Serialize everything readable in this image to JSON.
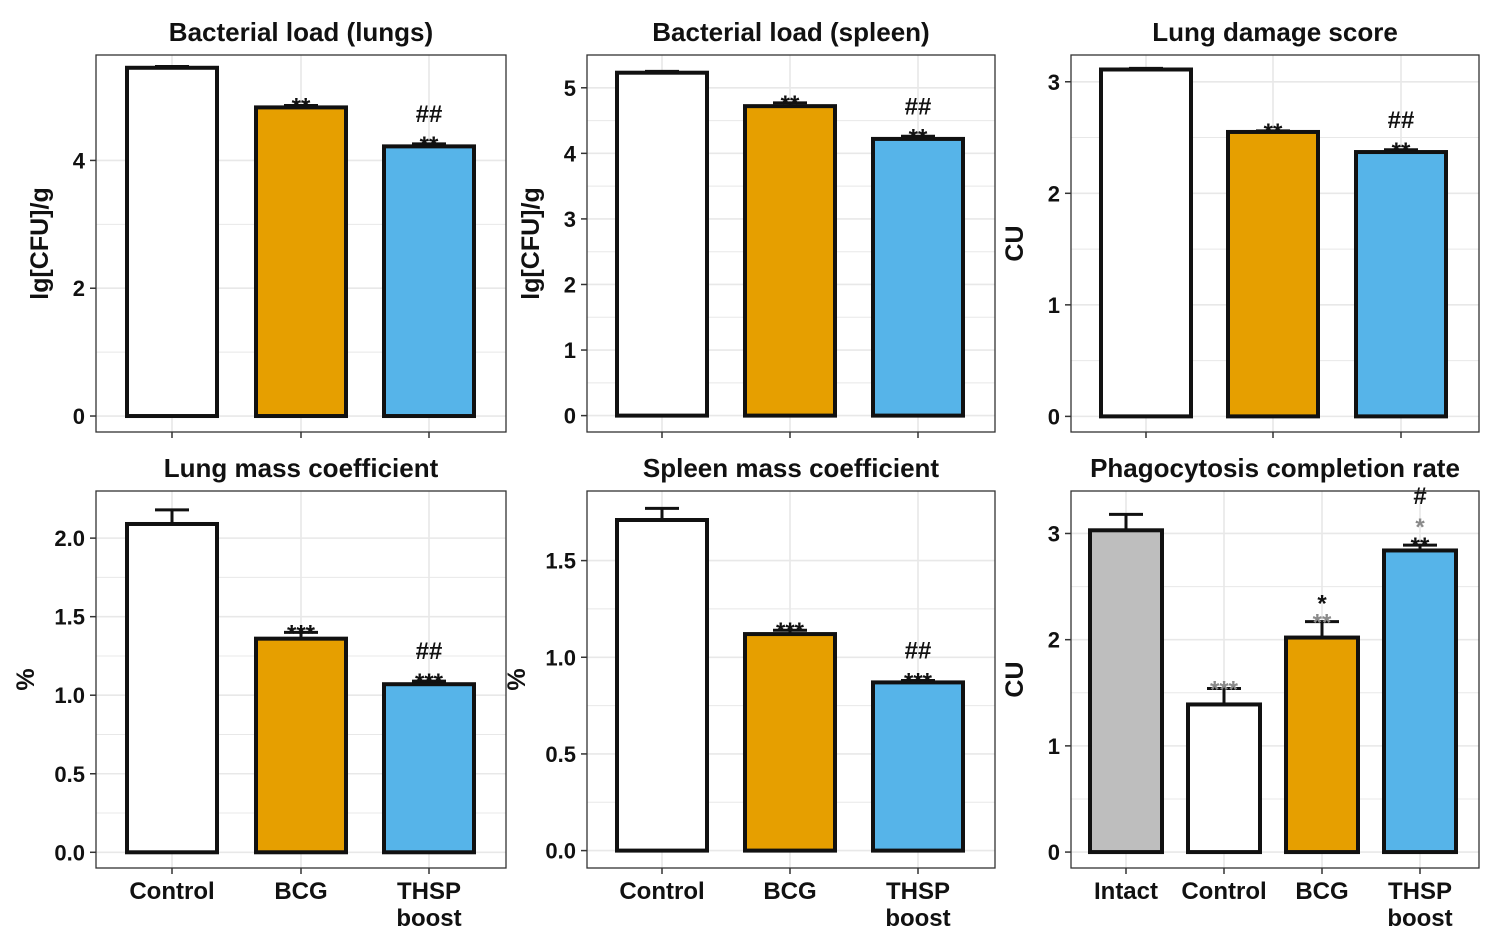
{
  "colors": {
    "control": "#ffffff",
    "bcg": "#e69f00",
    "thsp": "#56b4e9",
    "intact": "#bebebe",
    "stroke": "#111111",
    "grid": "#e8e8e8",
    "annotation_black": "#111111",
    "annotation_gray": "#8a8a8a"
  },
  "chart_data": [
    {
      "type": "bar",
      "title": "Bacterial load (lungs)",
      "ylabel": "lg[CFU]/g",
      "ylim": [
        -0.25,
        5.65
      ],
      "yticks": [
        0,
        2,
        4
      ],
      "categories": [
        "Control",
        "BCG",
        "THSP\nboost"
      ],
      "values": [
        5.45,
        4.83,
        4.22
      ],
      "errors": [
        0.02,
        0.03,
        0.04
      ],
      "fills": [
        "control",
        "bcg",
        "thsp"
      ],
      "annotations": [
        [],
        [
          {
            "text": "**",
            "color": "annotation_black"
          }
        ],
        [
          {
            "text": "**",
            "color": "annotation_black"
          },
          {
            "text": "##",
            "color": "annotation_black"
          }
        ]
      ],
      "show_xlabels": false
    },
    {
      "type": "bar",
      "title": "Bacterial load (spleen)",
      "ylabel": "lg[CFU]/g",
      "ylim": [
        -0.25,
        5.5
      ],
      "yticks": [
        0,
        1,
        2,
        3,
        4,
        5
      ],
      "categories": [
        "Control",
        "BCG",
        "THSP\nboost"
      ],
      "values": [
        5.23,
        4.72,
        4.22
      ],
      "errors": [
        0.02,
        0.05,
        0.04
      ],
      "fills": [
        "control",
        "bcg",
        "thsp"
      ],
      "annotations": [
        [],
        [
          {
            "text": "**",
            "color": "annotation_black"
          }
        ],
        [
          {
            "text": "**",
            "color": "annotation_black"
          },
          {
            "text": "##",
            "color": "annotation_black"
          }
        ]
      ],
      "show_xlabels": false
    },
    {
      "type": "bar",
      "title": "Lung damage score",
      "ylabel": "CU",
      "ylim": [
        -0.14,
        3.24
      ],
      "yticks": [
        0,
        1,
        2,
        3
      ],
      "categories": [
        "Control",
        "BCG",
        "THSP\nboost"
      ],
      "values": [
        3.11,
        2.55,
        2.37
      ],
      "errors": [
        0.01,
        0.01,
        0.02
      ],
      "fills": [
        "control",
        "bcg",
        "thsp"
      ],
      "annotations": [
        [],
        [
          {
            "text": "**",
            "color": "annotation_black"
          }
        ],
        [
          {
            "text": "**",
            "color": "annotation_black"
          },
          {
            "text": "##",
            "color": "annotation_black"
          }
        ]
      ],
      "show_xlabels": false
    },
    {
      "type": "bar",
      "title": "Lung mass coefficient",
      "ylabel": "%",
      "ylim": [
        -0.1,
        2.3
      ],
      "yticks": [
        0.0,
        0.5,
        1.0,
        1.5,
        2.0
      ],
      "ytick_labels": [
        "0.0",
        "0.5",
        "1.0",
        "1.5",
        "2.0"
      ],
      "categories": [
        "Control",
        "BCG",
        "THSP\nboost"
      ],
      "values": [
        2.09,
        1.36,
        1.07
      ],
      "errors": [
        0.09,
        0.04,
        0.02
      ],
      "fills": [
        "control",
        "bcg",
        "thsp"
      ],
      "annotations": [
        [],
        [
          {
            "text": "***",
            "color": "annotation_black"
          }
        ],
        [
          {
            "text": "***",
            "color": "annotation_black"
          },
          {
            "text": "##",
            "color": "annotation_black"
          }
        ]
      ],
      "show_xlabels": true
    },
    {
      "type": "bar",
      "title": "Spleen mass coefficient",
      "ylabel": "%",
      "ylim": [
        -0.09,
        1.86
      ],
      "yticks": [
        0.0,
        0.5,
        1.0,
        1.5
      ],
      "ytick_labels": [
        "0.0",
        "0.5",
        "1.0",
        "1.5"
      ],
      "categories": [
        "Control",
        "BCG",
        "THSP\nboost"
      ],
      "values": [
        1.71,
        1.12,
        0.87
      ],
      "errors": [
        0.06,
        0.02,
        0.01
      ],
      "fills": [
        "control",
        "bcg",
        "thsp"
      ],
      "annotations": [
        [],
        [
          {
            "text": "***",
            "color": "annotation_black"
          }
        ],
        [
          {
            "text": "***",
            "color": "annotation_black"
          },
          {
            "text": "##",
            "color": "annotation_black"
          }
        ]
      ],
      "show_xlabels": true
    },
    {
      "type": "bar",
      "title": "Phagocytosis completion rate",
      "ylabel": "CU",
      "ylim": [
        -0.15,
        3.4
      ],
      "yticks": [
        0,
        1,
        2,
        3
      ],
      "categories": [
        "Intact",
        "Control",
        "BCG",
        "THSP\nboost"
      ],
      "values": [
        3.03,
        1.39,
        2.02,
        2.84
      ],
      "errors": [
        0.15,
        0.15,
        0.15,
        0.05
      ],
      "fills": [
        "intact",
        "control",
        "bcg",
        "thsp"
      ],
      "annotations": [
        [],
        [
          {
            "text": "***",
            "color": "annotation_gray"
          }
        ],
        [
          {
            "text": "**",
            "color": "annotation_gray"
          },
          {
            "text": "*",
            "color": "annotation_black"
          }
        ],
        [
          {
            "text": "**",
            "color": "annotation_black"
          },
          {
            "text": "*",
            "color": "annotation_gray"
          },
          {
            "text": "#",
            "color": "annotation_black"
          }
        ]
      ],
      "show_xlabels": true
    }
  ]
}
